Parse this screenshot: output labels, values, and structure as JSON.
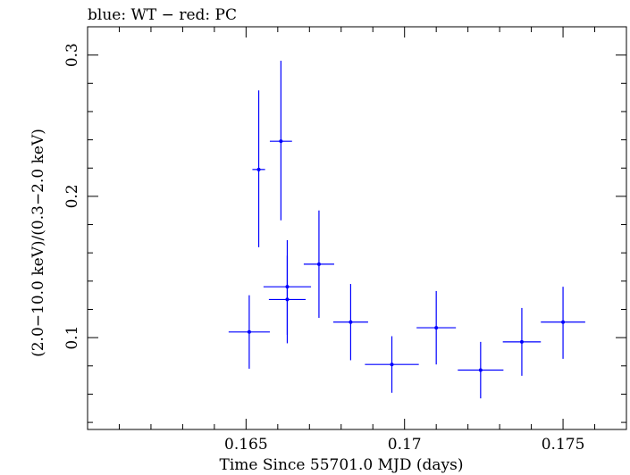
{
  "chart_data": {
    "type": "scatter",
    "title": "blue: WT − red: PC",
    "xlabel": "Time Since 55701.0 MJD (days)",
    "ylabel": "(2.0−10.0 keV)/(0.3−2.0 keV)",
    "xlim": [
      0.16,
      0.177
    ],
    "ylim": [
      0.035,
      0.32
    ],
    "x_ticks": [
      0.165,
      0.17,
      0.175
    ],
    "x_tick_labels": [
      "0.165",
      "0.17",
      "0.175"
    ],
    "y_ticks": [
      0.1,
      0.2,
      0.3
    ],
    "y_tick_labels": [
      "0.1",
      "0.2",
      "0.3"
    ],
    "grid": false,
    "series": [
      {
        "name": "WT",
        "color": "#0000ff",
        "points": [
          {
            "x": 0.1663,
            "xerr": 0.00058,
            "y": 0.127,
            "yerr_low": 0.031,
            "yerr_high": 0.031
          },
          {
            "x": 0.1654,
            "xerr": 0.0002,
            "y": 0.219,
            "yerr_low": 0.055,
            "yerr_high": 0.056
          },
          {
            "x": 0.1661,
            "xerr": 0.00035,
            "y": 0.239,
            "yerr_low": 0.056,
            "yerr_high": 0.057
          },
          {
            "x": 0.1651,
            "xerr": 0.00065,
            "y": 0.104,
            "yerr_low": 0.026,
            "yerr_high": 0.026
          },
          {
            "x": 0.1663,
            "xerr": 0.00075,
            "y": 0.136,
            "yerr_low": 0.034,
            "yerr_high": 0.033
          },
          {
            "x": 0.1673,
            "xerr": 0.00048,
            "y": 0.152,
            "yerr_low": 0.038,
            "yerr_high": 0.038
          },
          {
            "x": 0.1683,
            "xerr": 0.00055,
            "y": 0.111,
            "yerr_low": 0.027,
            "yerr_high": 0.027
          },
          {
            "x": 0.1696,
            "xerr": 0.00085,
            "y": 0.081,
            "yerr_low": 0.02,
            "yerr_high": 0.02
          },
          {
            "x": 0.171,
            "xerr": 0.00062,
            "y": 0.107,
            "yerr_low": 0.026,
            "yerr_high": 0.026
          },
          {
            "x": 0.1724,
            "xerr": 0.00072,
            "y": 0.077,
            "yerr_low": 0.02,
            "yerr_high": 0.02
          },
          {
            "x": 0.1737,
            "xerr": 0.0006,
            "y": 0.097,
            "yerr_low": 0.024,
            "yerr_high": 0.024
          },
          {
            "x": 0.175,
            "xerr": 0.0007,
            "y": 0.111,
            "yerr_low": 0.026,
            "yerr_high": 0.025
          }
        ]
      }
    ]
  }
}
